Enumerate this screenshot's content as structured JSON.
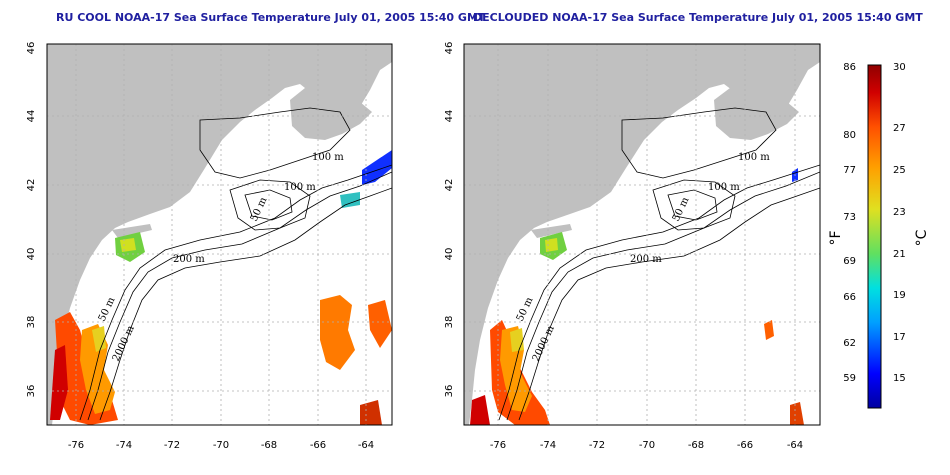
{
  "panels": [
    {
      "title": "RU COOL NOAA-17 Sea Surface Temperature July 01, 2005 15:40 GMT"
    },
    {
      "title": "DECLOUDED NOAA-17 Sea Surface Temperature July 01, 2005 15:40 GMT"
    }
  ],
  "axes": {
    "x_ticks": [
      "-76",
      "-74",
      "-72",
      "-70",
      "-68",
      "-66",
      "-64"
    ],
    "y_ticks": [
      "36",
      "38",
      "40",
      "42",
      "44",
      "46"
    ]
  },
  "contour_labels": [
    "100 m",
    "100 m",
    "50 m",
    "200 m",
    "50 m",
    "2000 m"
  ],
  "colorbar": {
    "f_label": "°F",
    "c_label": "°C",
    "f_ticks": [
      "86",
      "80",
      "77",
      "73",
      "69",
      "66",
      "62",
      "59"
    ],
    "c_ticks": [
      "30",
      "27",
      "25",
      "23",
      "21",
      "19",
      "17",
      "15"
    ],
    "range_c": [
      13,
      30
    ],
    "colors": [
      "#0000a0",
      "#0000ff",
      "#00a0ff",
      "#00e0e0",
      "#60e060",
      "#e0e020",
      "#ffa000",
      "#ff5000",
      "#d00000",
      "#900000"
    ]
  },
  "colors": {
    "land": "#c0c0c0",
    "title": "#2020a0",
    "grid": "#b0b0b0"
  }
}
